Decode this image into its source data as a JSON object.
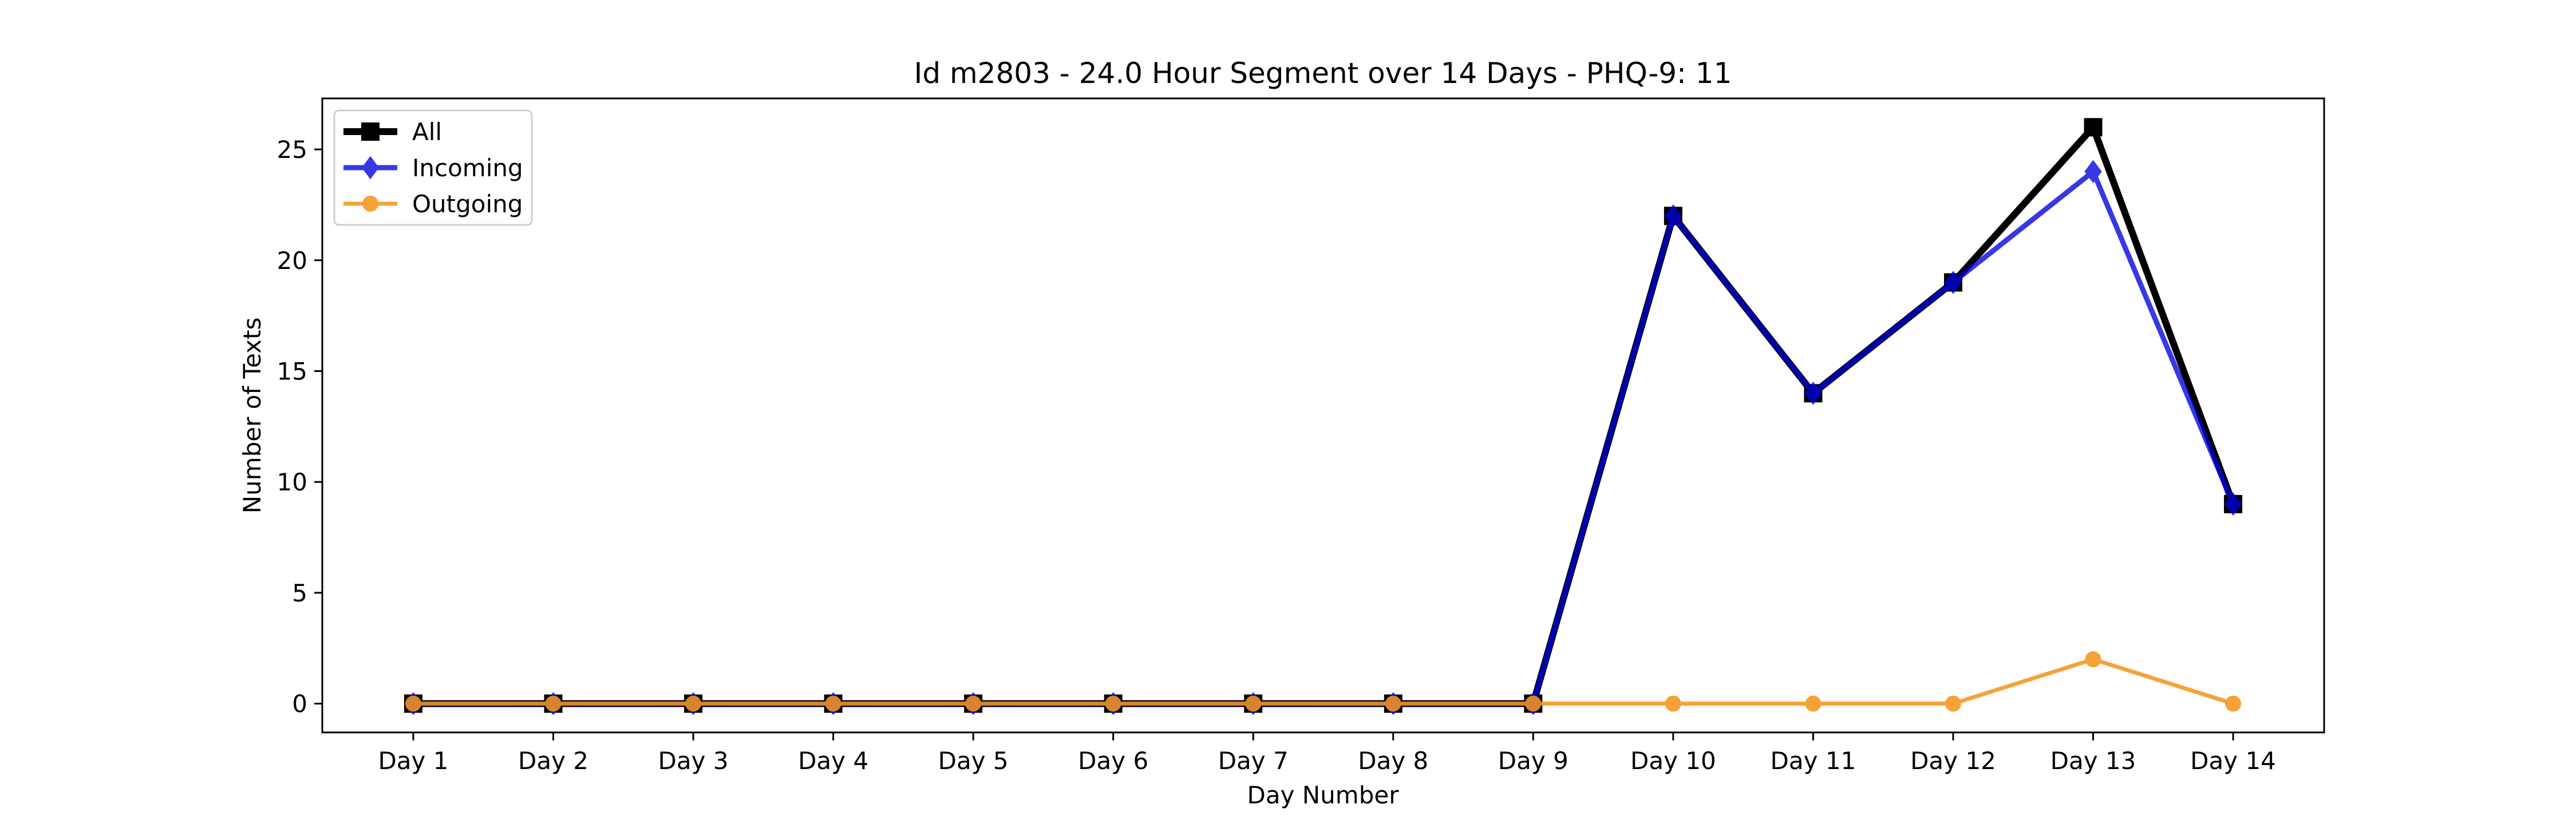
{
  "chart_data": {
    "type": "line",
    "title": "Id m2803 - 24.0 Hour Segment over 14 Days - PHQ-9: 11",
    "xlabel": "Day Number",
    "ylabel": "Number of Texts",
    "categories": [
      "Day 1",
      "Day 2",
      "Day 3",
      "Day 4",
      "Day 5",
      "Day 6",
      "Day 7",
      "Day 8",
      "Day 9",
      "Day 10",
      "Day 11",
      "Day 12",
      "Day 13",
      "Day 14"
    ],
    "ylim": [
      -1.3,
      27.3
    ],
    "yticks": [
      0,
      5,
      10,
      15,
      20,
      25
    ],
    "grid": false,
    "legend_position": "top-left",
    "series": [
      {
        "name": "All",
        "color": "#000000",
        "marker": "square",
        "values": [
          0,
          0,
          0,
          0,
          0,
          0,
          0,
          0,
          0,
          22,
          14,
          19,
          26,
          9
        ]
      },
      {
        "name": "Incoming",
        "color": "#0000dd",
        "marker": "diamond",
        "values": [
          0,
          0,
          0,
          0,
          0,
          0,
          0,
          0,
          0,
          22,
          14,
          19,
          24,
          9
        ]
      },
      {
        "name": "Outgoing",
        "color": "#f5961e",
        "marker": "circle",
        "values": [
          0,
          0,
          0,
          0,
          0,
          0,
          0,
          0,
          0,
          0,
          0,
          0,
          2,
          0
        ]
      }
    ]
  }
}
